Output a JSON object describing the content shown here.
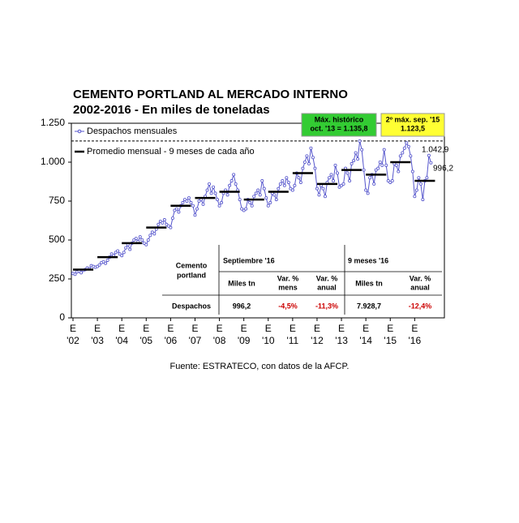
{
  "chart_data": {
    "type": "line",
    "title": "CEMENTO PORTLAND AL MERCADO INTERNO",
    "subtitle": "2002-2016 - En miles de toneladas",
    "source": "Fuente: ESTRATECO, con datos de la AFCP.",
    "series": [
      {
        "name": "Despachos mensuales",
        "color": "#5555cc",
        "values": [
          285,
          280,
          295,
          300,
          290,
          305,
          310,
          320,
          315,
          335,
          330,
          325,
          330,
          340,
          355,
          360,
          350,
          370,
          390,
          410,
          400,
          420,
          430,
          410,
          400,
          420,
          450,
          470,
          440,
          480,
          500,
          510,
          490,
          520,
          500,
          480,
          470,
          500,
          530,
          550,
          540,
          570,
          600,
          620,
          610,
          630,
          600,
          590,
          580,
          640,
          690,
          700,
          680,
          720,
          740,
          760,
          750,
          770,
          740,
          720,
          660,
          700,
          750,
          760,
          730,
          780,
          820,
          860,
          800,
          840,
          800,
          760,
          720,
          740,
          800,
          820,
          790,
          850,
          880,
          920,
          860,
          820,
          760,
          700,
          690,
          700,
          760,
          740,
          720,
          780,
          800,
          820,
          790,
          880,
          830,
          770,
          720,
          740,
          800,
          790,
          760,
          830,
          860,
          880,
          850,
          900,
          870,
          830,
          820,
          850,
          930,
          900,
          870,
          960,
          1000,
          1040,
          990,
          1090,
          1030,
          960,
          830,
          790,
          850,
          830,
          780,
          870,
          900,
          920,
          880,
          980,
          930,
          840,
          850,
          860,
          960,
          930,
          880,
          990,
          1010,
          1060,
          1020,
          1135.8,
          1080,
          950,
          820,
          800,
          900,
          920,
          860,
          950,
          960,
          1000,
          980,
          1080,
          980,
          880,
          870,
          880,
          990,
          980,
          940,
          1040,
          1060,
          1090,
          1123.5,
          1100,
          1040,
          940,
          780,
          820,
          900,
          860,
          760,
          880,
          900,
          1042.9,
          996.2
        ]
      },
      {
        "name": "Promedio mensual - 9 meses de cada año",
        "color": "#000000",
        "values": [
          310,
          390,
          480,
          580,
          720,
          770,
          810,
          760,
          810,
          930,
          860,
          950,
          920,
          1000,
          880
        ]
      }
    ],
    "ylim": [
      0,
      1250
    ],
    "yticks": [
      0,
      250,
      500,
      750,
      {
        "value": 1000,
        "label": "1.000"
      },
      {
        "value": 1250,
        "label": "1.250"
      }
    ],
    "xlim": [
      0,
      183
    ],
    "xticks": [
      {
        "value": 0,
        "month": "E",
        "label": "'02"
      },
      {
        "value": 12,
        "month": "E",
        "label": "'03"
      },
      {
        "value": 24,
        "month": "E",
        "label": "'04"
      },
      {
        "value": 36,
        "month": "E",
        "label": "'05"
      },
      {
        "value": 48,
        "month": "E",
        "label": "'06"
      },
      {
        "value": 60,
        "month": "E",
        "label": "'07"
      },
      {
        "value": 72,
        "month": "E",
        "label": "'08"
      },
      {
        "value": 84,
        "month": "E",
        "label": "'09"
      },
      {
        "value": 96,
        "month": "E",
        "label": "'10"
      },
      {
        "value": 108,
        "month": "E",
        "label": "'11"
      },
      {
        "value": 120,
        "month": "E",
        "label": "'12"
      },
      {
        "value": 132,
        "month": "E",
        "label": "'13"
      },
      {
        "value": 144,
        "month": "E",
        "label": "'14"
      },
      {
        "value": 156,
        "month": "E",
        "label": "'15"
      },
      {
        "value": 168,
        "month": "E",
        "label": "'16"
      }
    ],
    "grid": false,
    "legend": "top-left",
    "annotations": [
      {
        "lines": [
          "Máx. histórico",
          "oct. '13 = 1.135,8"
        ],
        "color": "#33cc33",
        "value": 1135.8
      },
      {
        "lines": [
          "2º máx. sep. '15",
          "1.123,5"
        ],
        "color": "#ffff33"
      },
      {
        "text": "1.042,9"
      },
      {
        "text": "996,2"
      }
    ]
  },
  "table": {
    "corner": [
      "Cemento",
      "portland"
    ],
    "groups": [
      "Septiembre '16",
      "9 meses '16"
    ],
    "columns": [
      [
        "Miles tn"
      ],
      [
        "Var. %",
        "mens"
      ],
      [
        "Var. %",
        "anual"
      ],
      [
        "Miles tn"
      ],
      [
        "Var. %",
        "anual"
      ]
    ],
    "row_label": "Despachos",
    "row": [
      "996,2",
      "-4,5%",
      "-11,3%",
      "7.928,7",
      "-12,4%"
    ]
  }
}
